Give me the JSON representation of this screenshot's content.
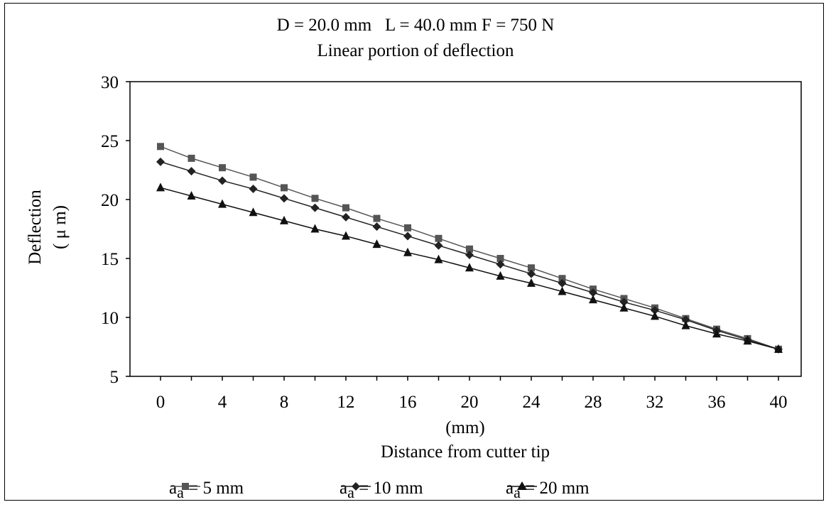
{
  "chart_data": {
    "type": "line",
    "title": "D = 20.0 mm   L = 40.0 mm F = 750 N",
    "subtitle": "Linear portion of deflection",
    "xlabel_unit": "(mm)",
    "xlabel": "Distance from cutter tip",
    "ylabel": "Deflection",
    "ylabel_unit": "( μ m)",
    "xlim": [
      0,
      40
    ],
    "ylim": [
      5,
      30
    ],
    "xticks": [
      0,
      4,
      8,
      12,
      16,
      20,
      24,
      28,
      32,
      36,
      40
    ],
    "yticks": [
      5,
      10,
      15,
      20,
      25,
      30
    ],
    "grid": false,
    "legend_position": "bottom",
    "x": [
      0,
      2,
      4,
      6,
      8,
      10,
      12,
      14,
      16,
      18,
      20,
      22,
      24,
      26,
      28,
      30,
      32,
      34,
      36,
      38,
      40
    ],
    "series": [
      {
        "name": "aₐ = 5 mm",
        "legend_main": "a",
        "legend_sub": "a",
        "legend_rest": " = 5 mm",
        "marker": "square",
        "color": "#555555",
        "values": [
          24.5,
          23.5,
          22.7,
          21.9,
          21.0,
          20.1,
          19.3,
          18.4,
          17.6,
          16.7,
          15.8,
          15.0,
          14.2,
          13.3,
          12.4,
          11.6,
          10.8,
          9.9,
          9.0,
          8.2,
          7.3
        ]
      },
      {
        "name": "aₐ = 10 mm",
        "legend_main": "a",
        "legend_sub": "a",
        "legend_rest": " = 10 mm",
        "marker": "diamond",
        "color": "#222222",
        "values": [
          23.2,
          22.4,
          21.6,
          20.9,
          20.1,
          19.3,
          18.5,
          17.7,
          16.9,
          16.1,
          15.3,
          14.5,
          13.7,
          12.9,
          12.1,
          11.3,
          10.6,
          9.8,
          8.9,
          8.1,
          7.3
        ]
      },
      {
        "name": "aₐ = 20 mm",
        "legend_main": "a",
        "legend_sub": "a",
        "legend_rest": " = 20 mm",
        "marker": "triangle",
        "color": "#111111",
        "values": [
          21.0,
          20.3,
          19.6,
          18.9,
          18.2,
          17.5,
          16.9,
          16.2,
          15.5,
          14.9,
          14.2,
          13.5,
          12.9,
          12.2,
          11.5,
          10.8,
          10.1,
          9.3,
          8.6,
          8.0,
          7.3
        ]
      }
    ]
  }
}
